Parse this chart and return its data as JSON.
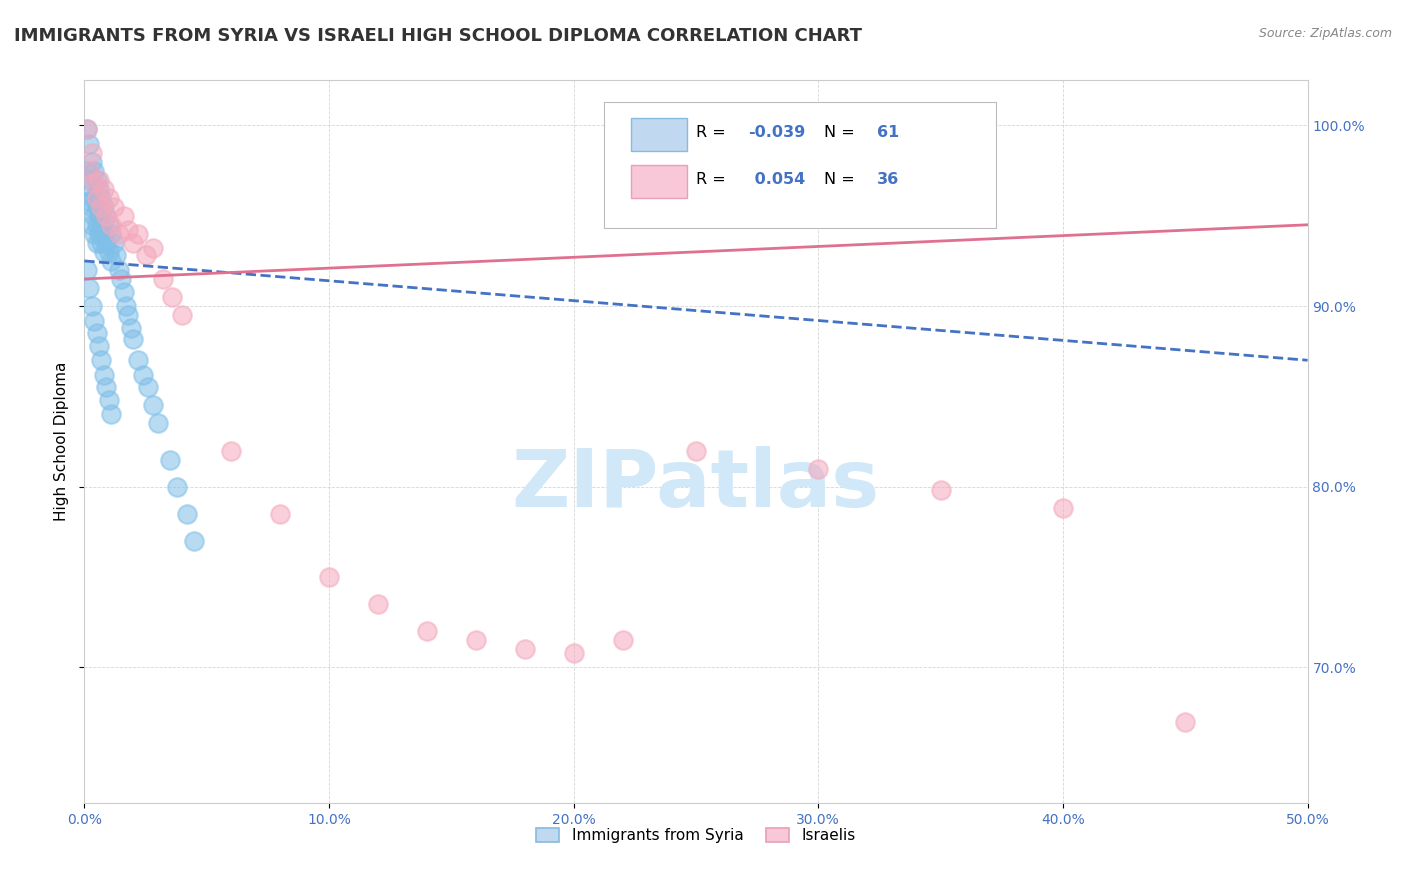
{
  "title": "IMMIGRANTS FROM SYRIA VS ISRAELI HIGH SCHOOL DIPLOMA CORRELATION CHART",
  "source": "Source: ZipAtlas.com",
  "ylabel": "High School Diploma",
  "xlim": [
    0.0,
    0.5
  ],
  "ylim": [
    0.625,
    1.025
  ],
  "xticks": [
    0.0,
    0.1,
    0.2,
    0.3,
    0.4,
    0.5
  ],
  "xtick_labels": [
    "0.0%",
    "10.0%",
    "20.0%",
    "30.0%",
    "40.0%",
    "50.0%"
  ],
  "yticks": [
    0.7,
    0.8,
    0.9,
    1.0
  ],
  "ytick_labels": [
    "70.0%",
    "80.0%",
    "90.0%",
    "100.0%"
  ],
  "blue_color": "#7fbfe8",
  "pink_color": "#f4a8bc",
  "blue_line_color": "#4472c4",
  "pink_line_color": "#e07090",
  "blue_R": -0.039,
  "blue_N": 61,
  "pink_R": 0.054,
  "pink_N": 36,
  "watermark": "ZIPatlas",
  "watermark_color": "#d0e8f8",
  "title_fontsize": 13,
  "axis_label_fontsize": 11,
  "tick_fontsize": 10,
  "blue_scatter_x": [
    0.001,
    0.001,
    0.002,
    0.002,
    0.002,
    0.003,
    0.003,
    0.003,
    0.003,
    0.004,
    0.004,
    0.004,
    0.004,
    0.005,
    0.005,
    0.005,
    0.005,
    0.006,
    0.006,
    0.006,
    0.007,
    0.007,
    0.007,
    0.008,
    0.008,
    0.008,
    0.009,
    0.009,
    0.01,
    0.01,
    0.011,
    0.011,
    0.012,
    0.013,
    0.014,
    0.015,
    0.016,
    0.017,
    0.018,
    0.019,
    0.02,
    0.022,
    0.024,
    0.026,
    0.028,
    0.03,
    0.035,
    0.038,
    0.042,
    0.045,
    0.001,
    0.002,
    0.003,
    0.004,
    0.005,
    0.006,
    0.007,
    0.008,
    0.009,
    0.01,
    0.011
  ],
  "blue_scatter_y": [
    0.998,
    0.975,
    0.99,
    0.97,
    0.958,
    0.98,
    0.965,
    0.955,
    0.945,
    0.975,
    0.96,
    0.95,
    0.94,
    0.97,
    0.955,
    0.945,
    0.935,
    0.965,
    0.95,
    0.94,
    0.96,
    0.945,
    0.935,
    0.955,
    0.94,
    0.93,
    0.95,
    0.935,
    0.945,
    0.93,
    0.94,
    0.925,
    0.935,
    0.928,
    0.92,
    0.915,
    0.908,
    0.9,
    0.895,
    0.888,
    0.882,
    0.87,
    0.862,
    0.855,
    0.845,
    0.835,
    0.815,
    0.8,
    0.785,
    0.77,
    0.92,
    0.91,
    0.9,
    0.892,
    0.885,
    0.878,
    0.87,
    0.862,
    0.855,
    0.848,
    0.84
  ],
  "pink_scatter_x": [
    0.001,
    0.002,
    0.003,
    0.004,
    0.005,
    0.006,
    0.007,
    0.008,
    0.009,
    0.01,
    0.011,
    0.012,
    0.014,
    0.016,
    0.018,
    0.02,
    0.022,
    0.025,
    0.028,
    0.032,
    0.036,
    0.04,
    0.06,
    0.08,
    0.1,
    0.12,
    0.14,
    0.16,
    0.18,
    0.2,
    0.22,
    0.25,
    0.3,
    0.35,
    0.4,
    0.45
  ],
  "pink_scatter_y": [
    0.998,
    0.975,
    0.985,
    0.968,
    0.96,
    0.97,
    0.955,
    0.965,
    0.95,
    0.96,
    0.945,
    0.955,
    0.94,
    0.95,
    0.942,
    0.935,
    0.94,
    0.928,
    0.932,
    0.915,
    0.905,
    0.895,
    0.82,
    0.785,
    0.75,
    0.735,
    0.72,
    0.715,
    0.71,
    0.708,
    0.715,
    0.82,
    0.81,
    0.798,
    0.788,
    0.67
  ]
}
